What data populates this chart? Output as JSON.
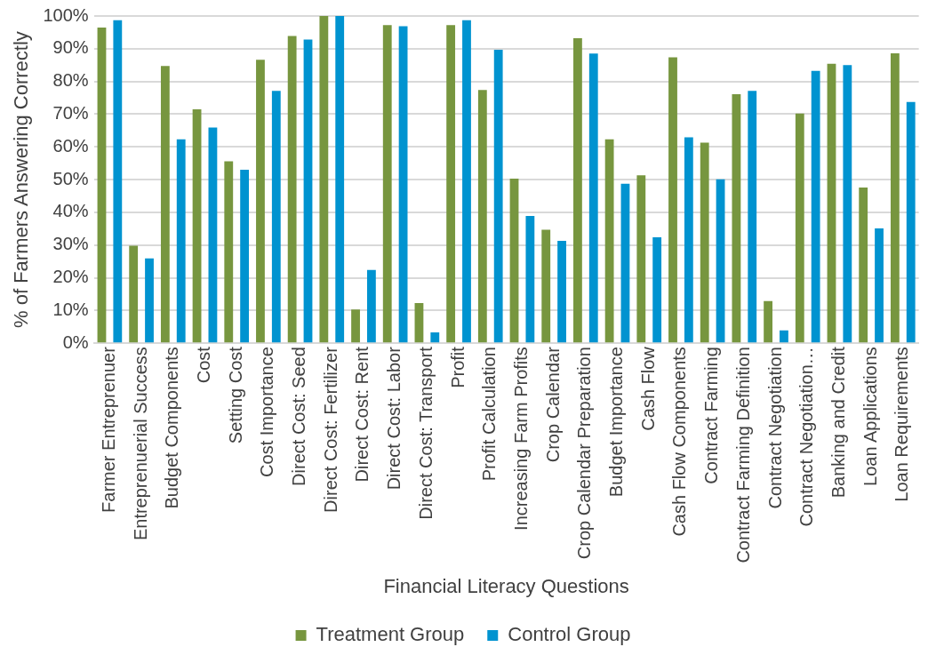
{
  "chart_data": {
    "type": "bar",
    "xlabel": "Financial Literacy Questions",
    "ylabel": "% of Farmers Answering Correctly",
    "categories": [
      "Farmer Entreprenuer",
      "Entreprenuerial Success",
      "Budget Components",
      "Cost",
      "Setting Cost",
      "Cost Importance",
      "Direct Cost: Seed",
      "Direct Cost: Fertilizer",
      "Direct Cost: Rent",
      "Direct Cost: Labor",
      "Direct Cost: Transport",
      "Profit",
      "Profit Calculation",
      "Increasing Farm Profits",
      "Crop Calendar",
      "Crop Calendar Preparation",
      "Budget Importance",
      "Cash Flow",
      "Cash Flow Components",
      "Contract Farming",
      "Contract Farming Definition",
      "Contract Negotiation",
      "Contract Negotiation…",
      "Banking and Credit",
      "Loan Applications",
      "Loan Requirements"
    ],
    "series": [
      {
        "name": "Treatment Group",
        "color": "#77963f",
        "values": [
          96.5,
          29.8,
          84.7,
          71.5,
          55.6,
          86.6,
          93.9,
          100,
          10.3,
          97.2,
          12.3,
          97.2,
          77.4,
          50.3,
          34.7,
          93.2,
          62.3,
          51.3,
          87.4,
          61.3,
          76.1,
          12.9,
          70.2,
          85.4,
          47.6,
          88.6
        ]
      },
      {
        "name": "Control Group",
        "color": "#0093d0",
        "values": [
          98.7,
          25.9,
          62.3,
          65.9,
          53.0,
          77.1,
          92.8,
          100,
          22.4,
          96.9,
          3.3,
          98.7,
          89.7,
          38.9,
          31.3,
          88.5,
          48.7,
          32.4,
          62.9,
          50.1,
          77.1,
          3.9,
          83.2,
          85.0,
          35.1,
          73.7
        ]
      }
    ],
    "ylim": [
      0,
      100
    ],
    "yticks": [
      {
        "value": 0,
        "label": "0%"
      },
      {
        "value": 10,
        "label": "10%"
      },
      {
        "value": 20,
        "label": "20%"
      },
      {
        "value": 30,
        "label": "30%"
      },
      {
        "value": 40,
        "label": "40%"
      },
      {
        "value": 50,
        "label": "50%"
      },
      {
        "value": 60,
        "label": "60%"
      },
      {
        "value": 70,
        "label": "70%"
      },
      {
        "value": 80,
        "label": "80%"
      },
      {
        "value": 90,
        "label": "90%"
      },
      {
        "value": 100,
        "label": "100%"
      }
    ],
    "grid": "y",
    "legend": "bottom"
  }
}
